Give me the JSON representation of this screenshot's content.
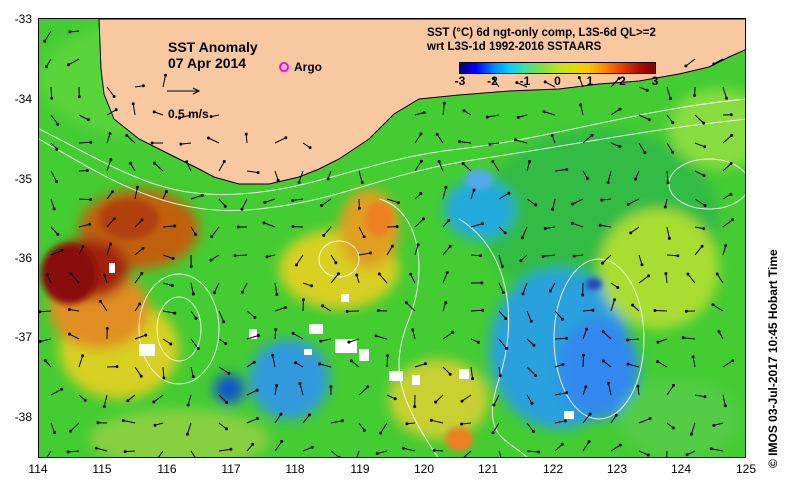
{
  "map": {
    "title": "SST Anomaly",
    "date": "07 Apr 2014",
    "argo_label": "Argo",
    "vector_scale_label": "0.5 m/s",
    "product_line1": "SST (°C) 6d ngt-only comp, L3S-6d QL>=2",
    "product_line2": "wrt L3S-1d 1992-2016 SSTAARS",
    "credit": "© IMOS 03-Jul-2017 10:45 Hobart Time",
    "lon_ticks": [
      "114",
      "115",
      "116",
      "117",
      "118",
      "119",
      "120",
      "121",
      "122",
      "123",
      "124",
      "125"
    ],
    "lat_ticks": [
      "-33",
      "-34",
      "-35",
      "-36",
      "-37",
      "-38"
    ],
    "colorbar": {
      "ticks": [
        "-3",
        "-2",
        "-1",
        "0",
        "1",
        "2",
        "3"
      ],
      "colors": [
        "#000080",
        "#0000ff",
        "#0080ff",
        "#00d0ff",
        "#40e0a0",
        "#80e040",
        "#c0e020",
        "#e0e000",
        "#ffc000",
        "#ff8000",
        "#e04000",
        "#b01000",
        "#800000"
      ]
    },
    "colors": {
      "land": "#f8c8a0",
      "ocean_base": "#44cc33",
      "argo_marker": "#ff00ff",
      "contour": "#ffffff"
    }
  }
}
